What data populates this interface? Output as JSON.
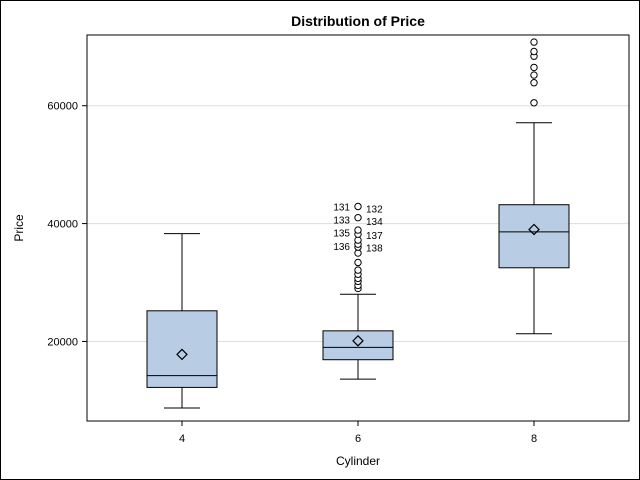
{
  "chart_data": {
    "type": "box",
    "title": "Distribution of Price",
    "xlabel": "Cylinder",
    "ylabel": "Price",
    "ylim": [
      6500,
      72000
    ],
    "yticks": [
      20000,
      40000,
      60000
    ],
    "ytick_labels": [
      "20000",
      "40000",
      "60000"
    ],
    "grid": true,
    "colors": {
      "box_fill": "#b8cce4",
      "gridline": "#dddddd",
      "stroke": "#000000"
    },
    "categories": [
      "4",
      "6",
      "8"
    ],
    "boxes": [
      {
        "category": "4",
        "whisker_low": 8700,
        "q1": 12200,
        "median": 14200,
        "q3": 25200,
        "whisker_high": 38300,
        "mean": 17800,
        "outliers": []
      },
      {
        "category": "6",
        "whisker_low": 13600,
        "q1": 16900,
        "median": 19000,
        "q3": 21800,
        "whisker_high": 28000,
        "mean": 20100,
        "outliers": [
          29000,
          29500,
          30200,
          30700,
          31400,
          32100,
          33400,
          35000,
          36000,
          36500,
          37200,
          38200,
          38900,
          41000,
          42900
        ]
      },
      {
        "category": "8",
        "whisker_low": 21300,
        "q1": 32500,
        "median": 38600,
        "q3": 43200,
        "whisker_high": 57100,
        "mean": 39000,
        "outliers": [
          60500,
          63900,
          65200,
          66500,
          68400,
          69200,
          70800
        ]
      }
    ],
    "outlier_labels": [
      {
        "category": "6",
        "side": "left",
        "y": 42900,
        "text": "131"
      },
      {
        "category": "6",
        "side": "right",
        "y": 42600,
        "text": "132"
      },
      {
        "category": "6",
        "side": "left",
        "y": 40700,
        "text": "133"
      },
      {
        "category": "6",
        "side": "right",
        "y": 40400,
        "text": "134"
      },
      {
        "category": "6",
        "side": "left",
        "y": 38500,
        "text": "135"
      },
      {
        "category": "6",
        "side": "right",
        "y": 38100,
        "text": "137"
      },
      {
        "category": "6",
        "side": "left",
        "y": 36200,
        "text": "136"
      },
      {
        "category": "6",
        "side": "right",
        "y": 35900,
        "text": "138"
      }
    ]
  }
}
